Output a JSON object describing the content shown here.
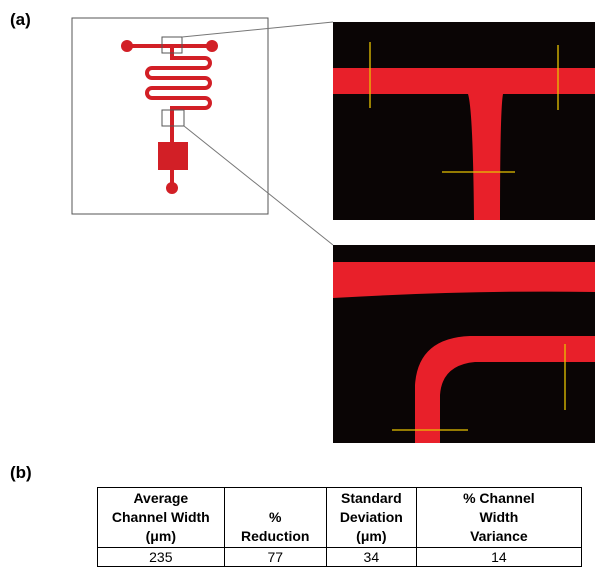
{
  "panels": {
    "a": "(a)",
    "b": "(b)"
  },
  "table": {
    "headers": [
      [
        "Average",
        "Channel Width",
        "(μm)"
      ],
      [
        "%",
        "Reduction"
      ],
      [
        "Standard",
        "Deviation",
        "(μm)"
      ],
      [
        "% Channel",
        "Width",
        "Variance"
      ]
    ],
    "rows": [
      [
        235,
        77,
        34,
        14
      ]
    ]
  }
}
